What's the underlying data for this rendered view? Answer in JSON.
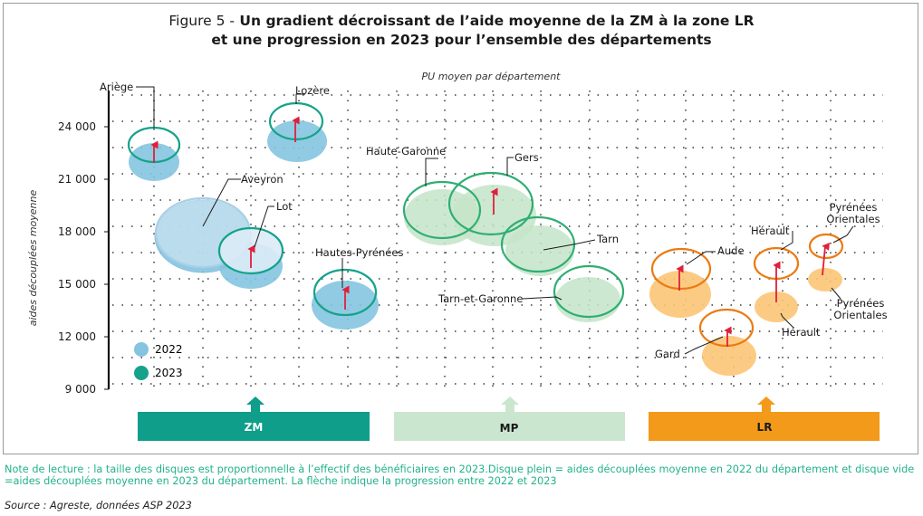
{
  "figure": {
    "label": "Figure 5 -",
    "title_line1": "Un gradient décroissant de l’aide moyenne de la ZM à la zone LR",
    "title_line2": "et une progression en 2023 pour l’ensemble des départements"
  },
  "colors": {
    "y2022": "#85c4e0",
    "y2023": "#14a28a",
    "ZM": "#0f9e8a",
    "MP": "#cbe6cf",
    "LR": "#f39a1a",
    "arrow": "#e0203a"
  },
  "chart_data": {
    "type": "bubble",
    "subtitle": "PU moyen par département",
    "ylabel": "aides découplées moyenne",
    "ylim": [
      9000,
      26000
    ],
    "yticks": [
      9000,
      12000,
      15000,
      18000,
      21000,
      24000
    ],
    "ytick_labels": [
      "9 000",
      "12 000",
      "15 000",
      "18 000",
      "21 000",
      "24 000"
    ],
    "grid": "dotted",
    "legend": {
      "position": "bottom-left",
      "entries": [
        {
          "label": "2022",
          "style": "filled"
        },
        {
          "label": "2023",
          "style": "ring"
        }
      ]
    },
    "zones": [
      {
        "label": "ZM"
      },
      {
        "label": "MP"
      },
      {
        "label": "LR"
      }
    ],
    "points": [
      {
        "name": "Ariège",
        "zone": "ZM",
        "y2022": 22000,
        "y2023": 23000,
        "size": 0.9
      },
      {
        "name": "Aveyron",
        "zone": "ZM",
        "y2022": 17900,
        "y2023": 18100,
        "size": 3.1
      },
      {
        "name": "Lot",
        "zone": "ZM",
        "y2022": 16200,
        "y2023": 17000,
        "size": 1.6
      },
      {
        "name": "Lozère",
        "zone": "ZM",
        "y2022": 23000,
        "y2023": 24200,
        "size": 1.2
      },
      {
        "name": "Hautes-Pyrénées",
        "zone": "ZM",
        "y2022": 13700,
        "y2023": 14700,
        "size": 1.6
      },
      {
        "name": "Haute-Garonne",
        "zone": "MP",
        "y2022": 19000,
        "y2023": 19300,
        "size": 2.0
      },
      {
        "name": "Gers",
        "zone": "MP",
        "y2022": 19100,
        "y2023": 20400,
        "size": 2.4
      },
      {
        "name": "Tarn",
        "zone": "MP",
        "y2022": 17100,
        "y2023": 17400,
        "size": 1.7
      },
      {
        "name": "Tarn-et-Garonne",
        "zone": "MP",
        "y2022": 14300,
        "y2023": 14700,
        "size": 1.4
      },
      {
        "name": "Aude",
        "zone": "LR",
        "y2022": 14500,
        "y2023": 16000,
        "size": 1.4
      },
      {
        "name": "Gard",
        "zone": "LR",
        "y2022": 10800,
        "y2023": 12400,
        "size": 1.1
      },
      {
        "name": "Hérault",
        "zone": "LR",
        "y2022": 13700,
        "y2023": 16200,
        "size": 0.75
      },
      {
        "name": "Pyrénées Orientales",
        "zone": "LR",
        "y2022": 15300,
        "y2023": 17100,
        "size": 0.45
      }
    ]
  },
  "labels": {
    "ariege": "Ariège",
    "aveyron": "Aveyron",
    "lot": "Lot",
    "lozere": "Lozère",
    "hautes_pyrenees": "Hautes-Pyrénées",
    "haute_garonne": "Haute-Garonne",
    "gers": "Gers",
    "tarn": "Tarn",
    "tarn_et_garonne": "Tarn-et-Garonne",
    "aude": "Aude",
    "gard": "Gard",
    "herault_top": "Hérault",
    "herault_bottom": "Hérault",
    "po_top_1": "Pyrénées",
    "po_top_2": "Orientales",
    "po_bottom_1": "Pyrénées",
    "po_bottom_2": "Orientales"
  },
  "note": "Note de  lecture : la taille des disques est proportionnelle à l’effectif des bénéficiaires en 2023.Disque plein = aides découplées moyenne en 2022 du département et disque vide =aides découplées moyenne en 2023 du département. La flèche indique la progression entre 2022 et 2023",
  "source": "Source : Agreste, données ASP 2023"
}
